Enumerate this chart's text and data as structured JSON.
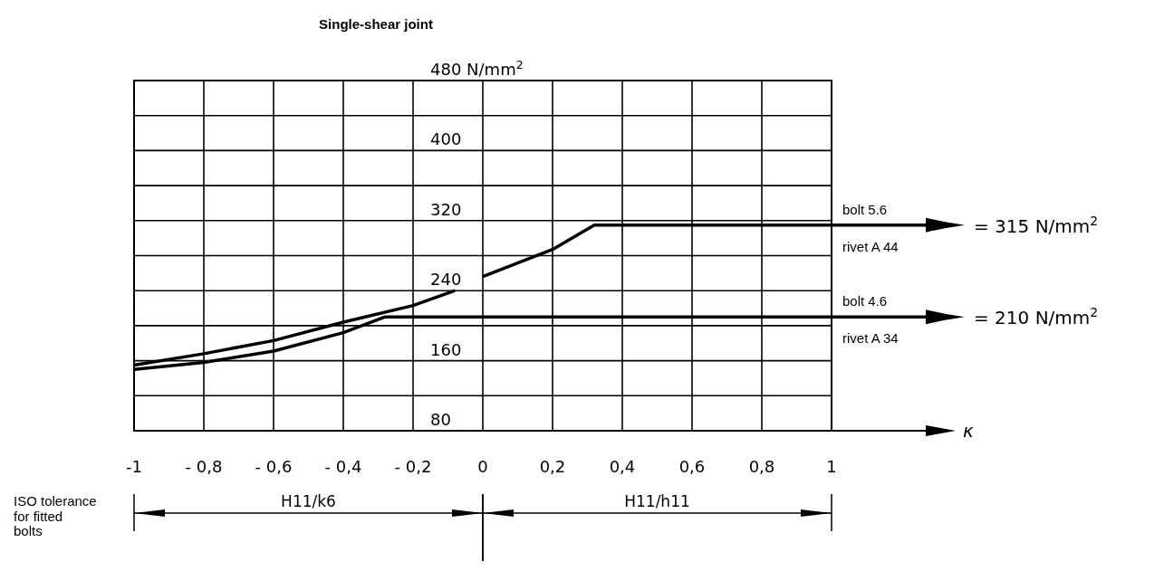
{
  "chart_data": {
    "type": "line",
    "title": "Single-shear joint",
    "xlim": [
      -1,
      1
    ],
    "xticks": [
      {
        "value": -1,
        "label": "-1"
      },
      {
        "value": -0.8,
        "label": "- 0,8"
      },
      {
        "value": -0.6,
        "label": "- 0,6"
      },
      {
        "value": -0.4,
        "label": "- 0,4"
      },
      {
        "value": -0.2,
        "label": "- 0,2"
      },
      {
        "value": 0,
        "label": "0"
      },
      {
        "value": 0.2,
        "label": "0,2"
      },
      {
        "value": 0.4,
        "label": "0,4"
      },
      {
        "value": 0.6,
        "label": "0,6"
      },
      {
        "value": 0.8,
        "label": "0,8"
      },
      {
        "value": 1,
        "label": "1"
      }
    ],
    "ylim": [
      80,
      480
    ],
    "yticks": [
      80,
      {
        "value": 120,
        "label": null
      },
      160,
      {
        "value": 200,
        "label": null
      },
      240,
      {
        "value": 280,
        "label": null
      },
      320,
      {
        "value": 360,
        "label": null
      },
      400,
      {
        "value": 440,
        "label": null
      },
      {
        "value": 480,
        "label": "480 N/mm$^{2}$"
      }
    ],
    "grid": true,
    "legend": false,
    "series": [
      {
        "name": "bolt 5.6",
        "color": "#000000",
        "x": [
          -1,
          -0.8,
          -0.6,
          -0.4,
          -0.2,
          -0.08,
          -0.04,
          0,
          0.2,
          0.32,
          1
        ],
        "values": [
          155,
          168,
          183,
          204,
          223,
          240,
          null,
          256,
          287,
          315,
          315
        ]
      },
      {
        "name": "bolt 4.6",
        "color": "#000000",
        "x": [
          -1,
          -0.8,
          -0.6,
          -0.4,
          -0.28,
          1
        ],
        "values": [
          150,
          158,
          171,
          192,
          210,
          210
        ]
      }
    ],
    "annotations": [
      "rivet A 44",
      "= 315 N/mm$^{2}$",
      "rivet A 34",
      "= 210 N/mm$^{2}$",
      "κ",
      "ISO tolerance for fitted bolts",
      "H11/k6",
      "H11/h11"
    ]
  }
}
